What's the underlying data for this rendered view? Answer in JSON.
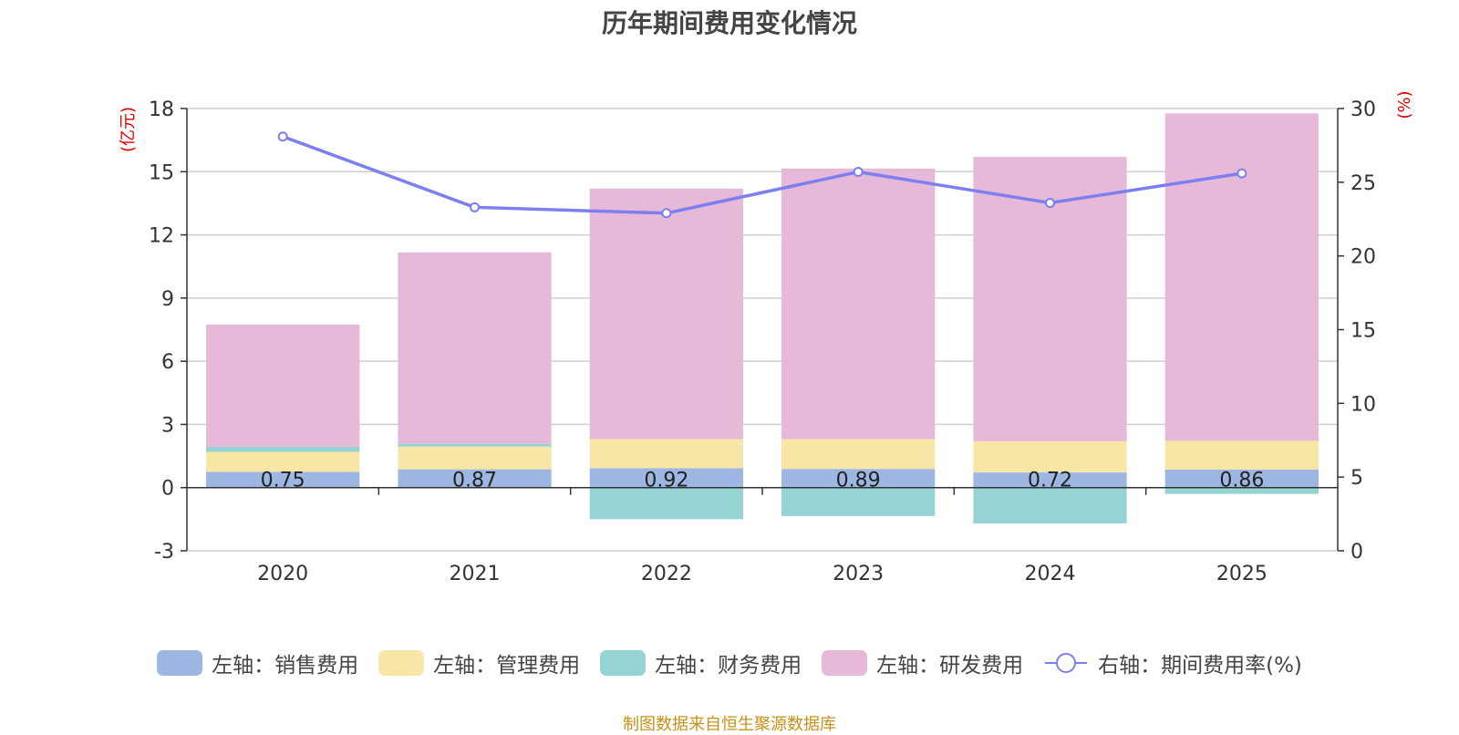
{
  "chart_data": {
    "type": "bar",
    "title": "历年期间费用变化情况",
    "categories": [
      "2020",
      "2021",
      "2022",
      "2023",
      "2024",
      "2025"
    ],
    "left_axis": {
      "unit": "(亿元)",
      "min": -3,
      "max": 18,
      "ticks": [
        -3,
        0,
        3,
        6,
        9,
        12,
        15,
        18
      ]
    },
    "right_axis": {
      "unit": "(%)",
      "min": 0,
      "max": 30,
      "ticks": [
        0,
        5,
        10,
        15,
        20,
        25,
        30
      ]
    },
    "series": [
      {
        "name": "左轴：销售费用",
        "key": "sales",
        "color": "#9db6e2",
        "axis": "left",
        "type": "bar",
        "values": [
          0.75,
          0.87,
          0.92,
          0.89,
          0.72,
          0.86
        ],
        "labels": [
          "0.75",
          "0.87",
          "0.92",
          "0.89",
          "0.72",
          "0.86"
        ]
      },
      {
        "name": "左轴：管理费用",
        "key": "admin",
        "color": "#f8e6a6",
        "axis": "left",
        "type": "bar",
        "values": [
          0.95,
          1.08,
          1.38,
          1.41,
          1.48,
          1.36
        ]
      },
      {
        "name": "左轴：财务费用",
        "key": "finance",
        "color": "#96d3d4",
        "axis": "left",
        "type": "bar",
        "values": [
          0.24,
          0.13,
          -1.5,
          -1.35,
          -1.7,
          -0.3
        ]
      },
      {
        "name": "左轴：研发费用",
        "key": "rd",
        "color": "#e7b9d9",
        "axis": "left",
        "type": "bar",
        "values": [
          5.8,
          9.09,
          11.9,
          12.85,
          13.5,
          15.55
        ]
      },
      {
        "name": "右轴：期间费用率(%)",
        "key": "rate",
        "color": "#7b7fef",
        "axis": "right",
        "type": "line",
        "values": [
          28.1,
          23.3,
          22.9,
          25.7,
          23.6,
          25.6
        ]
      }
    ]
  },
  "footer": "制图数据来自恒生聚源数据库"
}
